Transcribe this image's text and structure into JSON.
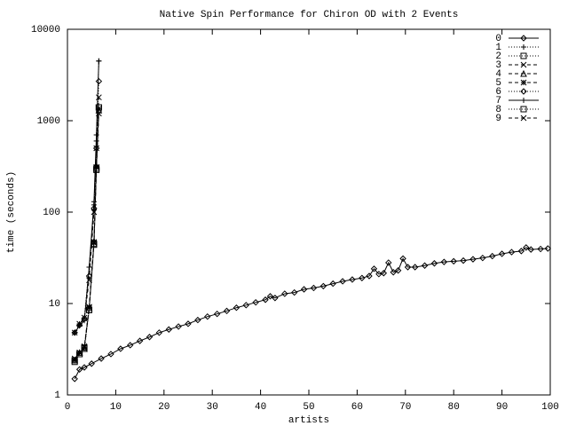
{
  "chart_data": {
    "type": "line",
    "title": "Native Spin Performance for Chiron OD with 2 Events",
    "xlabel": "artists",
    "ylabel": "time (seconds)",
    "xlim": [
      0,
      100
    ],
    "xticks": [
      0,
      10,
      20,
      30,
      40,
      50,
      60,
      70,
      80,
      90,
      100
    ],
    "ylim": [
      1,
      10000
    ],
    "yticks": [
      1,
      10,
      100,
      1000,
      10000
    ],
    "log_y": true,
    "legend": "top-right",
    "series": [
      {
        "name": "0",
        "color": "#000000",
        "marker": "diamond",
        "dash": "solid",
        "x": [
          1.5,
          2.5,
          3.5,
          5,
          7,
          9,
          11,
          13,
          15,
          17,
          19,
          21,
          23,
          25,
          27,
          29,
          31,
          33,
          35,
          37,
          39,
          41,
          42,
          43,
          45,
          47,
          49,
          51,
          53,
          55,
          57,
          59,
          61,
          62.5,
          63.5,
          64.5,
          65.5,
          66.5,
          67.5,
          68.5,
          69.5,
          70.5,
          72,
          74,
          76,
          78,
          80,
          82,
          84,
          86,
          88,
          90,
          92,
          94,
          95,
          96,
          98,
          99.5
        ],
        "values": [
          1.5,
          1.9,
          2.0,
          2.2,
          2.5,
          2.8,
          3.2,
          3.5,
          3.9,
          4.3,
          4.8,
          5.2,
          5.6,
          6.0,
          6.6,
          7.2,
          7.7,
          8.3,
          9.0,
          9.6,
          10.3,
          11,
          12,
          11.5,
          12.8,
          13.2,
          14.3,
          14.8,
          15.5,
          16.5,
          17.5,
          18.3,
          19,
          20,
          24,
          21,
          21.5,
          28,
          22,
          23,
          31,
          25,
          25,
          26,
          27.5,
          28.5,
          29,
          29.5,
          30.5,
          31.5,
          33,
          35,
          36.5,
          37.5,
          41,
          39,
          39.5,
          40
        ]
      },
      {
        "name": "1",
        "color": "#000000",
        "marker": "plus",
        "dash": "dotted",
        "x": [
          1.5,
          2.5,
          3.5,
          4.5,
          5.5,
          6,
          6.5
        ],
        "values": [
          4.8,
          6,
          7,
          25,
          120,
          600,
          4500
        ]
      },
      {
        "name": "2",
        "color": "#000000",
        "marker": "square",
        "dash": "dotted",
        "x": [
          1.5,
          2.5,
          3.5,
          4.5,
          5.5,
          6,
          6.5
        ],
        "values": [
          2.3,
          2.8,
          3.3,
          8.5,
          45,
          300,
          1400
        ]
      },
      {
        "name": "3",
        "color": "#000000",
        "marker": "cross",
        "dash": "dashed",
        "x": [
          1.5,
          2.5,
          3.5,
          4.5,
          5.5,
          6,
          6.5
        ],
        "values": [
          4.8,
          6,
          7,
          18,
          100,
          500,
          1800
        ]
      },
      {
        "name": "4",
        "color": "#000000",
        "marker": "triangle",
        "dash": "dashed",
        "x": [
          1.5,
          2.5,
          3.5,
          4.5,
          5.5,
          6,
          6.5
        ],
        "values": [
          2.4,
          2.9,
          3.2,
          9,
          48,
          320,
          1300
        ]
      },
      {
        "name": "5",
        "color": "#000000",
        "marker": "star",
        "dash": "dashed",
        "x": [
          1.5,
          2.5,
          3.5,
          4.5,
          5.5,
          6,
          6.5
        ],
        "values": [
          2.4,
          2.9,
          3.3,
          9.2,
          47,
          310,
          1350
        ]
      },
      {
        "name": "6",
        "color": "#000000",
        "marker": "diamond",
        "dash": "dotted",
        "x": [
          1.5,
          2.5,
          3.5,
          4.5,
          5.5,
          6,
          6.5
        ],
        "values": [
          4.8,
          5.8,
          6.8,
          20,
          110,
          500,
          2700
        ]
      },
      {
        "name": "7",
        "color": "#000000",
        "marker": "plus",
        "dash": "solid",
        "x": [
          1.5,
          2.5,
          3.5,
          4.5,
          5.5,
          6,
          6.5
        ],
        "values": [
          4.8,
          5.7,
          6.5,
          25,
          130,
          700,
          4500
        ]
      },
      {
        "name": "8",
        "color": "#000000",
        "marker": "square",
        "dash": "dotted",
        "x": [
          1.5,
          2.5,
          3.5,
          4.5,
          5.5,
          6,
          6.5
        ],
        "values": [
          2.4,
          2.8,
          3.2,
          8.5,
          44,
          290,
          1400
        ]
      },
      {
        "name": "9",
        "color": "#000000",
        "marker": "cross",
        "dash": "dashed",
        "x": [
          1.5,
          2.5,
          3.5,
          4.5,
          5.5,
          6,
          6.5
        ],
        "values": [
          2.5,
          2.9,
          3.4,
          9,
          46,
          310,
          1200
        ]
      }
    ]
  }
}
